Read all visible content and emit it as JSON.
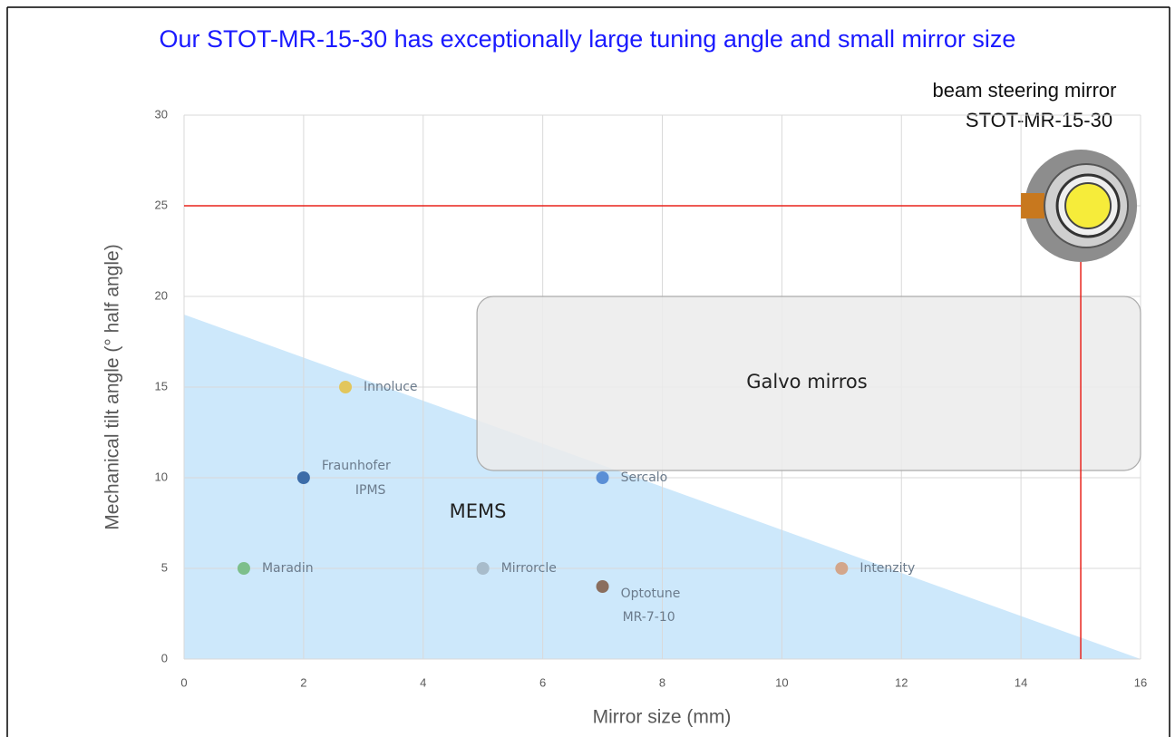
{
  "chart_data": {
    "type": "scatter",
    "title": "Our STOT-MR-15-30 has exceptionally large tuning angle and small mirror size",
    "x_label": "Mirror size (mm)",
    "y_label": "Mechanical tilt angle (° half angle)",
    "xlim": [
      0,
      16
    ],
    "xticks": [
      0,
      2,
      4,
      6,
      8,
      10,
      12,
      14,
      16
    ],
    "ylim": [
      0,
      30
    ],
    "yticks": [
      0,
      5,
      10,
      15,
      20,
      25,
      30
    ],
    "grid": true,
    "points": [
      {
        "label": [
          "Innoluce"
        ],
        "x": 2.7,
        "y": 15,
        "color": "#e2c65c"
      },
      {
        "label": [
          "Fraunhofer",
          "IPMS"
        ],
        "x": 2,
        "y": 10,
        "color": "#3c6ca8"
      },
      {
        "label": [
          "Maradin"
        ],
        "x": 1,
        "y": 5,
        "color": "#7dbf8b"
      },
      {
        "label": [
          "Mirrorcle"
        ],
        "x": 5,
        "y": 5,
        "color": "#a8bccb"
      },
      {
        "label": [
          "Sercalo"
        ],
        "x": 7,
        "y": 10,
        "color": "#5a8fd6"
      },
      {
        "label": [
          "Optotune",
          "MR-7-10"
        ],
        "x": 7,
        "y": 4,
        "color": "#8a6e5e"
      },
      {
        "label": [
          "Intenzity"
        ],
        "x": 11,
        "y": 5,
        "color": "#d3a68b"
      }
    ],
    "mems_region": {
      "label": "MEMS",
      "x": [
        0,
        16,
        0
      ],
      "y": [
        19,
        0,
        0
      ],
      "color": "#cde8fb"
    },
    "galvo_region": {
      "label": "Galvo mirros",
      "xlim": [
        4.9,
        16
      ],
      "ylim": [
        10.4,
        20
      ]
    },
    "product_marker": {
      "label": [
        "beam steering mirror",
        "STOT-MR-15-30"
      ],
      "x": 15,
      "y": 25,
      "color": "#e8231c"
    }
  }
}
